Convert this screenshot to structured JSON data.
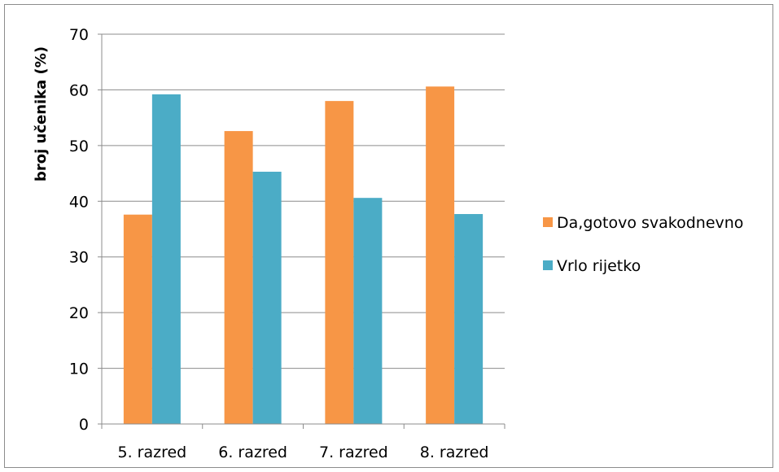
{
  "chart_data": {
    "type": "bar",
    "categories": [
      "5. razred",
      "6. razred",
      "7. razred",
      "8. razred"
    ],
    "series": [
      {
        "name": "Da,gotovo svakodnevno",
        "values": [
          37.6,
          52.6,
          58.0,
          60.6
        ],
        "color": "#F79646"
      },
      {
        "name": "Vrlo rijetko",
        "values": [
          59.2,
          45.3,
          40.6,
          37.7
        ],
        "color": "#4BACC6"
      }
    ],
    "title": "",
    "xlabel": "",
    "ylabel": "broj učenika (%)",
    "ylim": [
      0,
      70
    ],
    "yticks": [
      0,
      10,
      20,
      30,
      40,
      50,
      60,
      70
    ],
    "grid": true,
    "legend_position": "right"
  }
}
